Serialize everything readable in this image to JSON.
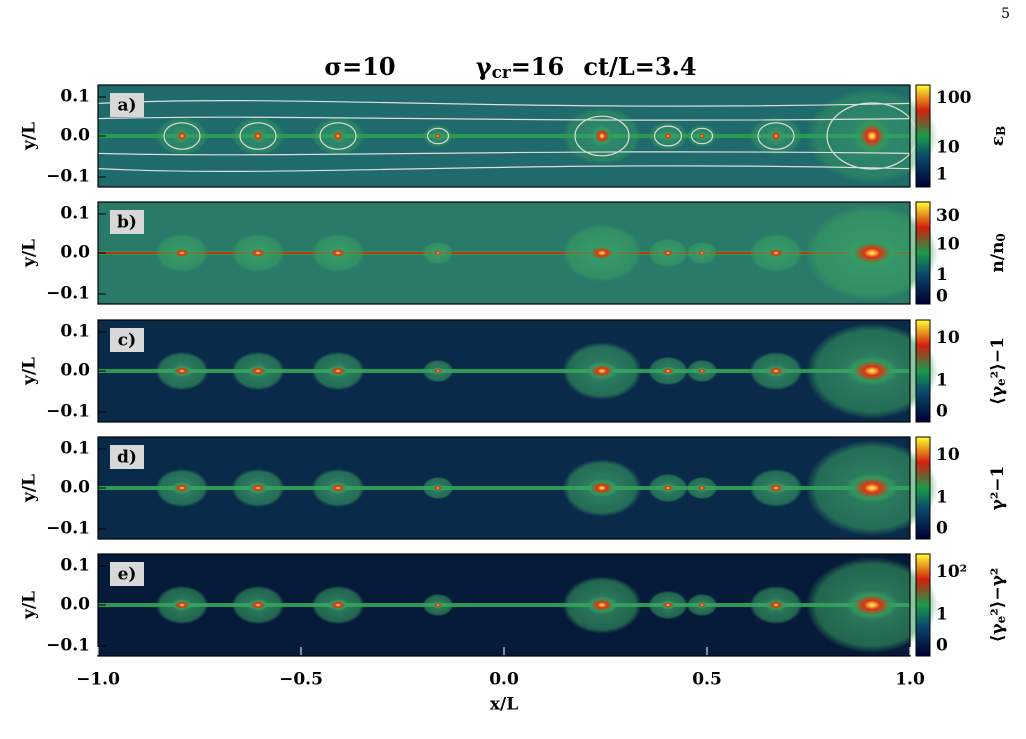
{
  "page_number": "5",
  "figure": {
    "title": [
      [
        "σ=10"
      ],
      [
        "γ",
        "cr",
        "=16"
      ],
      [
        "ct/L=3.4"
      ]
    ],
    "panels": [
      {
        "label": "a)",
        "ylabel": "y/L",
        "yticks": [
          "0.1",
          "0.0",
          "−0.1"
        ],
        "cbar_ticks": [
          "100",
          "10",
          "1"
        ],
        "cbar_label": [
          "ε",
          "B"
        ]
      },
      {
        "label": "b)",
        "ylabel": "y/L",
        "yticks": [
          "0.1",
          "0.0",
          "−0.1"
        ],
        "cbar_ticks": [
          "30",
          "10",
          "1",
          "0"
        ],
        "cbar_label": [
          "n/n",
          "0"
        ]
      },
      {
        "label": "c)",
        "ylabel": "y/L",
        "yticks": [
          "0.1",
          "0.0",
          "−0.1"
        ],
        "cbar_ticks": [
          "10",
          "1",
          "0"
        ],
        "cbar_label": [
          "⟨γ",
          "e",
          "²⟩−1"
        ]
      },
      {
        "label": "d)",
        "ylabel": "y/L",
        "yticks": [
          "0.1",
          "0.0",
          "−0.1"
        ],
        "cbar_ticks": [
          "10",
          "1",
          "0"
        ],
        "cbar_label": [
          "γ²−1"
        ]
      },
      {
        "label": "e)",
        "ylabel": "y/L",
        "yticks": [
          "0.1",
          "0.0",
          "−0.1"
        ],
        "cbar_ticks": [
          "10²",
          "1",
          "0"
        ],
        "cbar_label": [
          "⟨γ",
          "e",
          "²⟩−γ²"
        ]
      }
    ],
    "xticks": [
      "−1.0",
      "−0.5",
      "0.0",
      "0.5",
      "1.0"
    ],
    "xlabel": "x/L"
  }
}
